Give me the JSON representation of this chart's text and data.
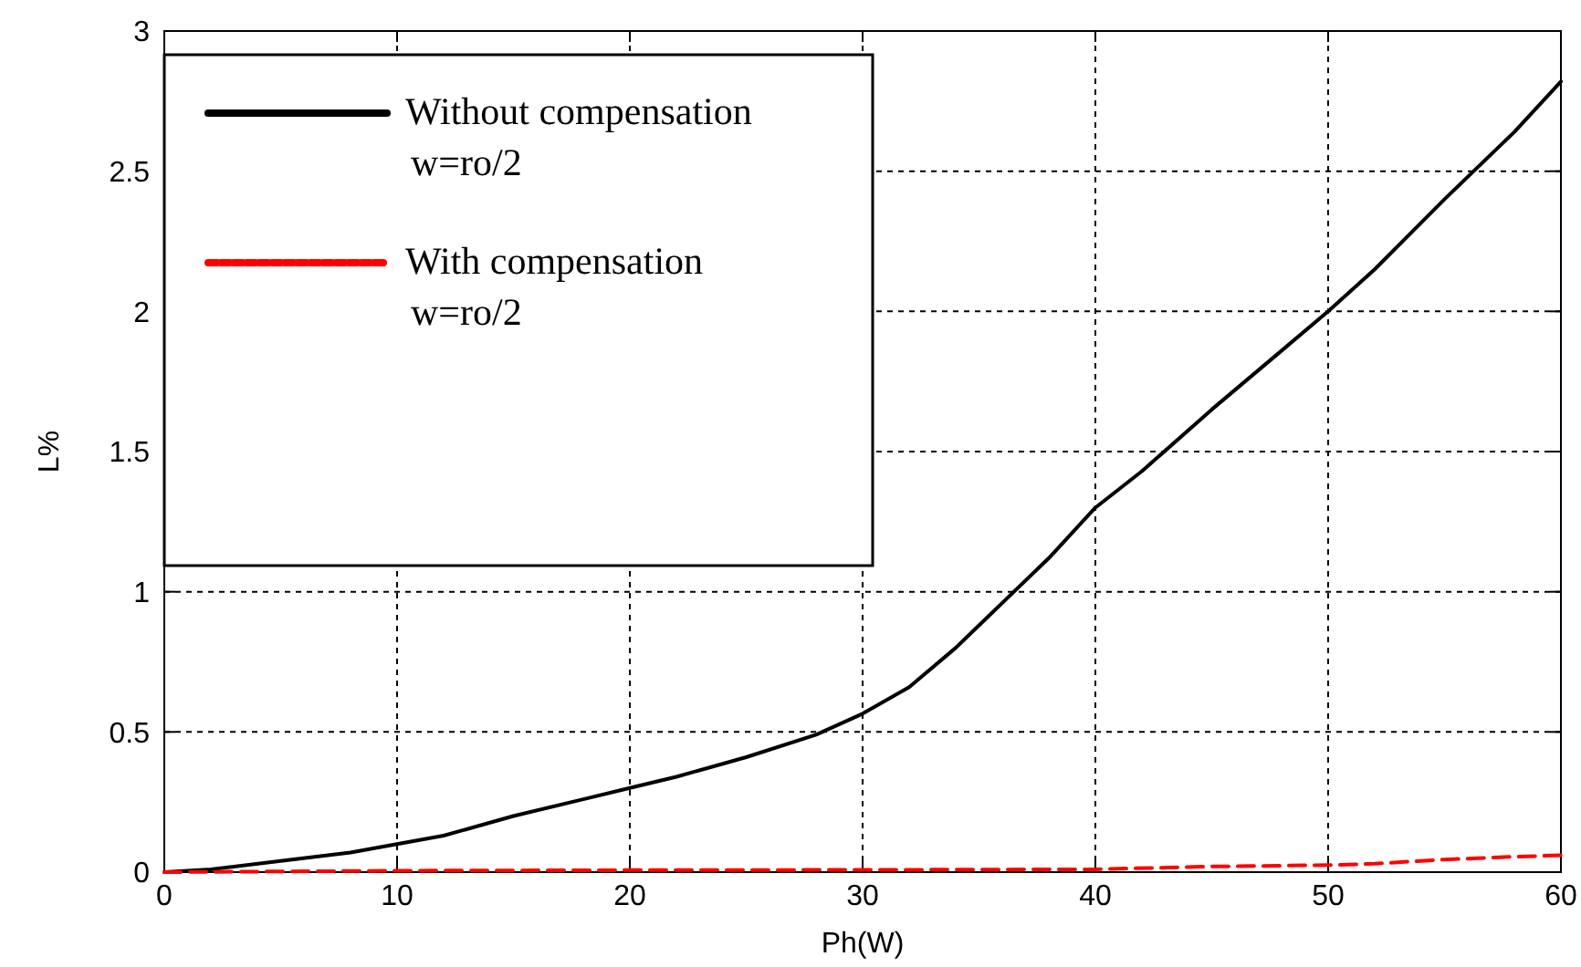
{
  "chart_data": {
    "type": "line",
    "xlabel": "Ph(W)",
    "ylabel": "L%",
    "xlim": [
      0,
      60
    ],
    "ylim": [
      0,
      3
    ],
    "xticks": [
      0,
      10,
      20,
      30,
      40,
      50,
      60
    ],
    "yticks": [
      0,
      0.5,
      1,
      1.5,
      2,
      2.5,
      3
    ],
    "grid": true,
    "legend": "top left",
    "marker": "none",
    "series": [
      {
        "name": "Without compensation\nw=ro/2",
        "color": "#000000",
        "line_style": "solid",
        "x": [
          0,
          2,
          5,
          8,
          10,
          12,
          15,
          18,
          20,
          22,
          25,
          28,
          30,
          32,
          34,
          35,
          36.5,
          38,
          40,
          42,
          45,
          48,
          50,
          52,
          55,
          58,
          60
        ],
        "values": [
          0,
          0.01,
          0.04,
          0.07,
          0.1,
          0.13,
          0.2,
          0.26,
          0.3,
          0.34,
          0.41,
          0.49,
          0.565,
          0.66,
          0.8,
          0.88,
          1.0,
          1.12,
          1.3,
          1.43,
          1.65,
          1.86,
          2.0,
          2.15,
          2.4,
          2.64,
          2.82
        ]
      },
      {
        "name": "With compensation\nw=ro/2",
        "color": "#ff0000",
        "line_style": "dashed",
        "x": [
          0,
          10,
          20,
          30,
          40,
          45,
          50,
          52,
          55,
          58,
          60
        ],
        "values": [
          0,
          0.005,
          0.007,
          0.008,
          0.01,
          0.02,
          0.025,
          0.03,
          0.045,
          0.055,
          0.06
        ]
      }
    ]
  }
}
